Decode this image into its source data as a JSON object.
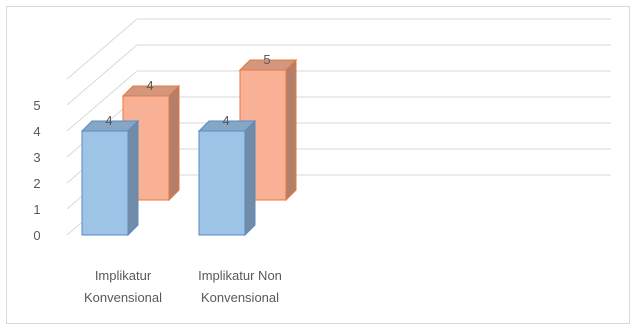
{
  "chart_data": {
    "type": "bar",
    "style": "3d-clustered-column",
    "categories": [
      [
        "Implikatur",
        "Konvensional"
      ],
      [
        "Implikatur Non",
        "Konvensional"
      ]
    ],
    "series": [
      {
        "values": [
          4,
          4
        ],
        "color": "#9dc3e6"
      },
      {
        "values": [
          4,
          5
        ],
        "color": "#f8b195"
      }
    ],
    "y_ticks": [
      "0",
      "1",
      "2",
      "3",
      "4",
      "5"
    ],
    "ylim": [
      0,
      5
    ],
    "grid": true,
    "legend": "none"
  }
}
